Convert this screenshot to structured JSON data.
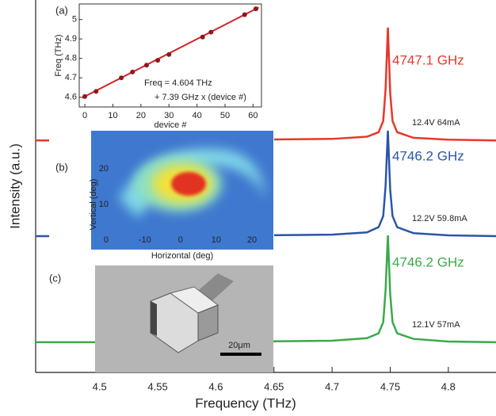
{
  "chart_data": [
    {
      "type": "line",
      "x_label": "Frequency (THz)",
      "y_label": "Intensity (a.u.)",
      "xlim": [
        4.445,
        4.841
      ],
      "xticks": [
        4.5,
        4.55,
        4.6,
        4.65,
        4.7,
        4.75,
        4.8
      ],
      "ylim": [
        0,
        10
      ],
      "x": [
        4.445,
        4.5,
        4.6,
        4.7,
        4.73,
        4.74,
        4.744,
        4.746,
        4.748,
        4.75,
        4.752,
        4.756,
        4.77,
        4.8,
        4.841
      ],
      "series": [
        {
          "color": "#e8372a",
          "peak_label": "4747.1 GHz",
          "bias_label": "12.4V 64mA",
          "values": [
            6.23,
            6.23,
            6.24,
            6.27,
            6.33,
            6.45,
            6.75,
            7.6,
            9.26,
            7.5,
            6.75,
            6.45,
            6.3,
            6.25,
            6.23
          ]
        },
        {
          "color": "#2a55a8",
          "peak_label": "4746.2 GHz",
          "bias_label": "12.2V 59.8mA",
          "values": [
            3.66,
            3.66,
            3.67,
            3.7,
            3.76,
            3.9,
            4.2,
            5.0,
            6.49,
            4.9,
            4.2,
            3.9,
            3.74,
            3.68,
            3.66
          ]
        },
        {
          "color": "#3aaa4a",
          "peak_label": "4746.2 GHz",
          "bias_label": "12.1V 57mA",
          "values": [
            0.81,
            0.81,
            0.82,
            0.85,
            0.92,
            1.05,
            1.35,
            2.2,
            3.68,
            2.1,
            1.35,
            1.05,
            0.9,
            0.83,
            0.81
          ]
        }
      ]
    },
    {
      "type": "scatter",
      "panel_label": "(a)",
      "x_label": "device #",
      "y_label": "Freq (THz)",
      "xlim": [
        -2,
        63
      ],
      "xticks": [
        0,
        10,
        20,
        30,
        40,
        50,
        60
      ],
      "ylim": [
        4.55,
        5.08
      ],
      "yticks": [
        4.6,
        4.7,
        4.8,
        4.9,
        5
      ],
      "x": [
        0,
        4,
        13,
        17,
        22,
        26,
        30,
        42,
        45,
        57,
        61
      ],
      "values": [
        4.604,
        4.63,
        4.7,
        4.73,
        4.765,
        4.79,
        4.82,
        4.91,
        4.935,
        5.025,
        5.055
      ],
      "color": "#8b1a1a",
      "fit_line": {
        "color": "#d2232a",
        "x": [
          -1,
          62
        ],
        "values": [
          4.597,
          5.062
        ]
      },
      "annotations": [
        "Freq = 4.604 THz",
        "+ 7.39 GHz x (device #)"
      ]
    },
    {
      "type": "heatmap",
      "panel_label": "(b)",
      "x_label": "Horizontal (deg)",
      "y_label": "Vertical (deg)",
      "xlim": [
        -19.5,
        26
      ],
      "xticks": [
        -10,
        0,
        10,
        20
      ],
      "ylim": [
        -1.5,
        30
      ],
      "yticks": [
        0,
        10,
        20
      ]
    },
    {
      "type": "image",
      "panel_label": "(c)",
      "scale_bar": "20μm"
    }
  ]
}
